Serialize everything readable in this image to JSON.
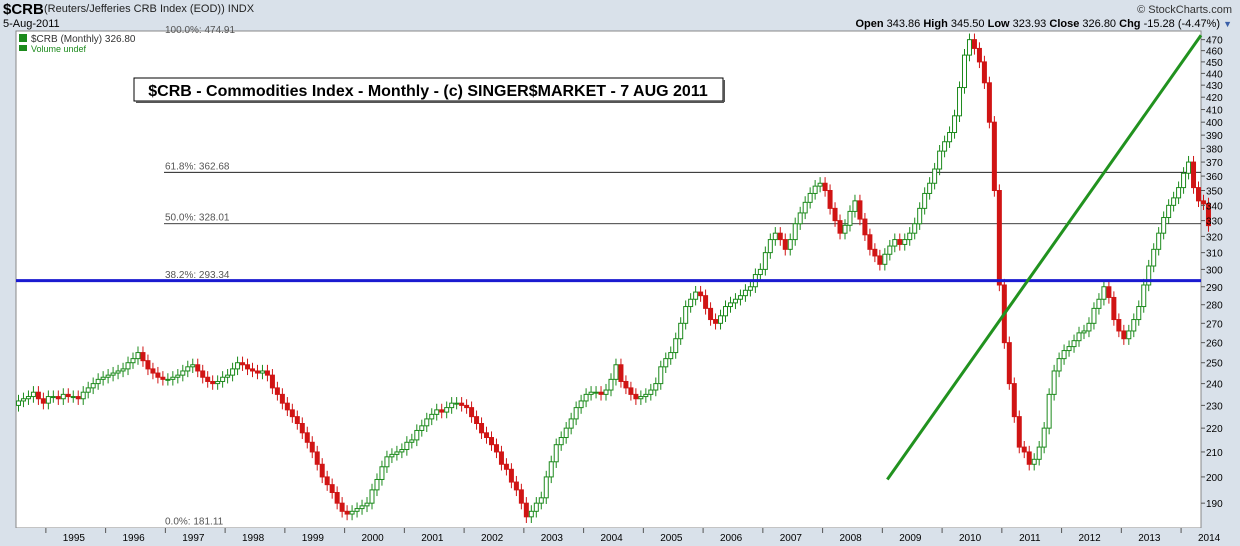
{
  "header": {
    "symbol": "$CRB",
    "name": "(Reuters/Jefferies CRB Index (EOD))  INDX",
    "date": "5-Aug-2011",
    "brand": "© StockCharts.com",
    "open_label": "Open",
    "open": "343.86",
    "high_label": "High",
    "high": "345.50",
    "low_label": "Low",
    "low": "323.93",
    "close_label": "Close",
    "close": "326.80",
    "chg_label": "Chg",
    "chg": "-15.28 (-4.47%)"
  },
  "legend": {
    "price_label": "$CRB (Monthly) 326.80",
    "volume_label": "Volume undef"
  },
  "colors": {
    "up": "#1c8a1c",
    "down": "#d01414",
    "support": "#1a1ad0",
    "trend": "#21921f",
    "fib": "#000000"
  },
  "chart_data": {
    "type": "candlestick",
    "title": "$CRB - Commodities Index - Monthly - (c) SINGER$MARKET - 7 AUG 2011",
    "scale": "log",
    "ylim": [
      181,
      478
    ],
    "y_ticks": [
      190,
      200,
      210,
      220,
      230,
      240,
      250,
      260,
      270,
      280,
      290,
      300,
      310,
      320,
      330,
      340,
      350,
      360,
      370,
      380,
      390,
      400,
      410,
      420,
      430,
      440,
      450,
      460,
      470
    ],
    "x_ticks": [
      "1995",
      "1996",
      "1997",
      "1998",
      "1999",
      "2000",
      "2001",
      "2002",
      "2003",
      "2004",
      "2005",
      "2006",
      "2007",
      "2008",
      "2009",
      "2010",
      "2011",
      "2012",
      "2013",
      "2014"
    ],
    "xlim": [
      "1994-07",
      "2014-05"
    ],
    "fib_levels": [
      {
        "label": "100.0%: 474.91",
        "value": 474.91
      },
      {
        "label": "61.8%: 362.68",
        "value": 362.68
      },
      {
        "label": "50.0%: 328.01",
        "value": 328.01
      },
      {
        "label": "38.2%: 293.34",
        "value": 293.34
      },
      {
        "label": "0.0%: 181.11",
        "value": 181.11
      }
    ],
    "horizontal_line": {
      "value": 293.5
    },
    "trendline": {
      "from": {
        "date": "2009-02",
        "value": 199
      },
      "to": {
        "date": "2014-05",
        "value": 474
      }
    },
    "series": [
      {
        "start": "1994-07",
        "closes": [
          232,
          233,
          234,
          236,
          233,
          231,
          234,
          234,
          233,
          235,
          234,
          234,
          233,
          236,
          238,
          240,
          242,
          243,
          244,
          245,
          246,
          247,
          250,
          252,
          255,
          251,
          247,
          245,
          243,
          242,
          242,
          243,
          244,
          246,
          248,
          249,
          246,
          243,
          241,
          240,
          241,
          243,
          244,
          247,
          250,
          249,
          247,
          246,
          245,
          246,
          244,
          238,
          235,
          231,
          228,
          225,
          222,
          218,
          214,
          210,
          205,
          200,
          197,
          194,
          190,
          187,
          186,
          187,
          188,
          189,
          190,
          195,
          199,
          204,
          208,
          209,
          210,
          211,
          214,
          215,
          219,
          221,
          224,
          226,
          228,
          227,
          229,
          231,
          231,
          230,
          229,
          225,
          222,
          218,
          216,
          213,
          210,
          205,
          203,
          198,
          195,
          190,
          185,
          187,
          190,
          192,
          200,
          206,
          213,
          216,
          220,
          224,
          229,
          232,
          235,
          236,
          236,
          235,
          237,
          242,
          249,
          241,
          238,
          235,
          233,
          234,
          235,
          237,
          240,
          248,
          252,
          255,
          262,
          270,
          279,
          283,
          287,
          285,
          278,
          272,
          270,
          274,
          279,
          281,
          283,
          285,
          288,
          290,
          297,
          300,
          310,
          318,
          322,
          318,
          312,
          318,
          328,
          335,
          342,
          348,
          353,
          355,
          350,
          338,
          330,
          322,
          327,
          336,
          343,
          331,
          321,
          312,
          308,
          303,
          309,
          314,
          318,
          315,
          318,
          322,
          328,
          338,
          348,
          355,
          365,
          378,
          385,
          392,
          405,
          428,
          456,
          470,
          462,
          450,
          432,
          400,
          350,
          291,
          260,
          240,
          225,
          212,
          210,
          205,
          207,
          212,
          220,
          235,
          246,
          252,
          256,
          258,
          261,
          265,
          266,
          270,
          278,
          283,
          290,
          284,
          272,
          266,
          262,
          266,
          272,
          279,
          291,
          302,
          312,
          322,
          332,
          340,
          345,
          352,
          362,
          370,
          352,
          343,
          341,
          326.8
        ],
        "notes": "monthly closes read from chart; candle open = previous close"
      }
    ]
  }
}
